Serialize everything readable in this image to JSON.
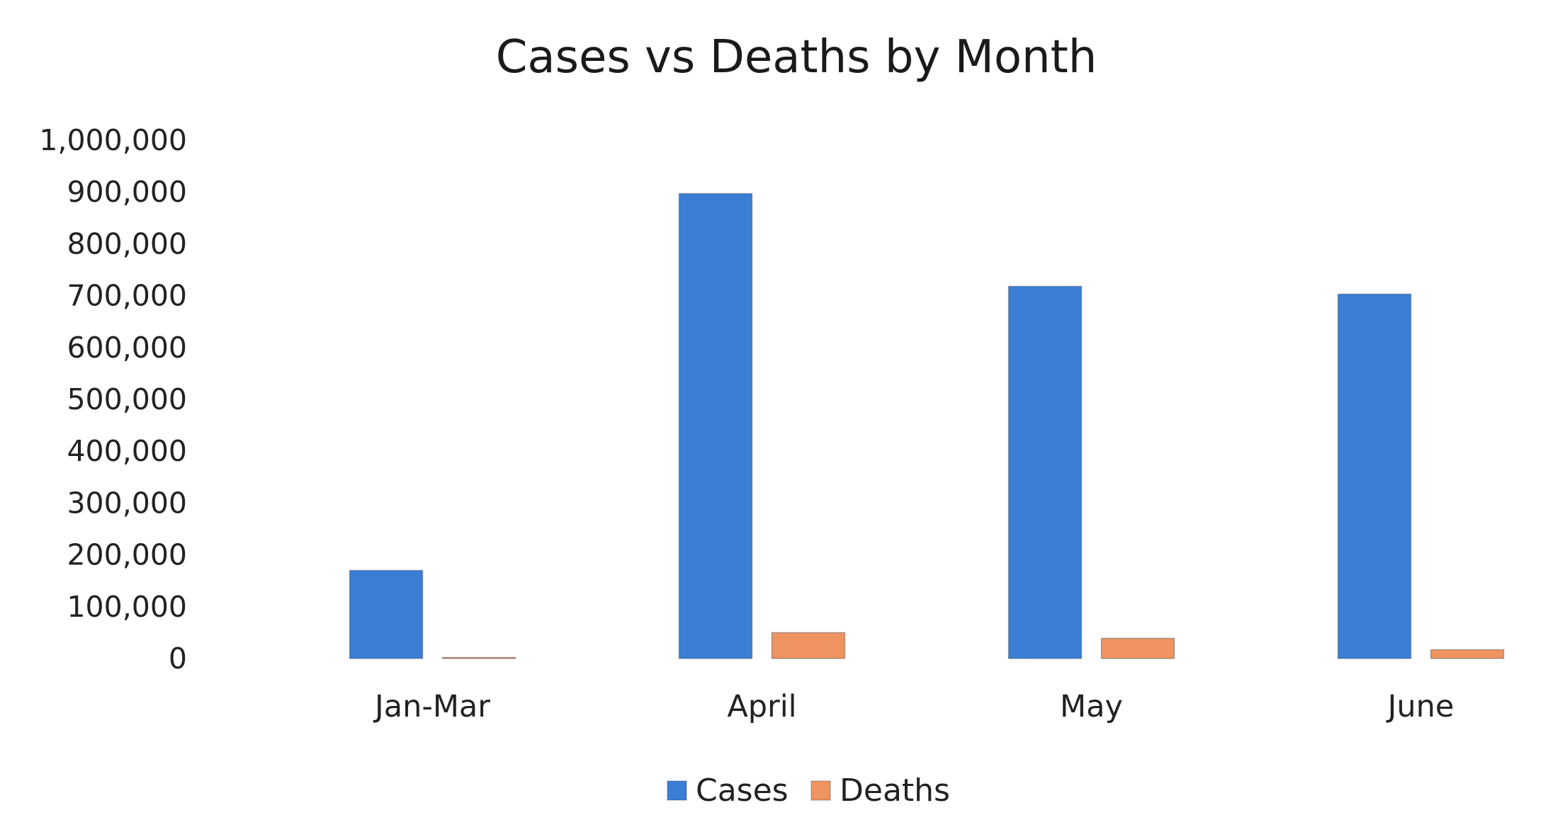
{
  "chart_data": {
    "type": "bar",
    "title": "Cases vs Deaths by Month",
    "xlabel": "",
    "ylabel": "",
    "categories": [
      "Jan-Mar",
      "April",
      "May",
      "June"
    ],
    "series": [
      {
        "name": "Cases",
        "color": "#3a7fd5",
        "values": [
          170000,
          897000,
          718000,
          703000
        ]
      },
      {
        "name": "Deaths",
        "color": "#ef9460",
        "values": [
          1000,
          50000,
          39000,
          17000
        ]
      }
    ],
    "ylim": [
      0,
      1000000
    ],
    "yticks": [
      0,
      100000,
      200000,
      300000,
      400000,
      500000,
      600000,
      700000,
      800000,
      900000,
      1000000
    ],
    "ytick_labels": [
      "0",
      "100,000",
      "200,000",
      "300,000",
      "400,000",
      "500,000",
      "600,000",
      "700,000",
      "800,000",
      "900,000",
      "1,000,000"
    ],
    "grid": false,
    "legend": "bottom"
  }
}
